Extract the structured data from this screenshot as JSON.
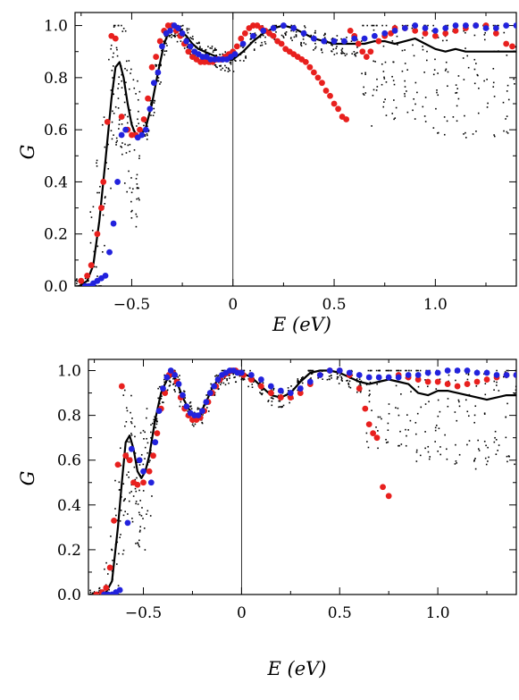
{
  "chart_data": [
    {
      "type": "scatter",
      "title": "",
      "xlabel": "E (eV)",
      "ylabel": "G",
      "xlim": [
        -0.78,
        1.4
      ],
      "ylim": [
        0.0,
        1.05
      ],
      "x_ticks": [
        "−0.5",
        "0",
        "0.5",
        "1.0"
      ],
      "x_tick_values": [
        -0.5,
        0,
        0.5,
        1.0
      ],
      "y_ticks": [
        "0.0",
        "0.2",
        "0.4",
        "0.6",
        "0.8",
        "1.0"
      ],
      "y_tick_values": [
        0.0,
        0.2,
        0.4,
        0.6,
        0.8,
        1.0
      ],
      "grid": false,
      "legend": "none",
      "vertical_reference_line_x": 0,
      "series": [
        {
          "color": "#000000",
          "style": "line",
          "x": [
            -0.76,
            -0.72,
            -0.69,
            -0.66,
            -0.63,
            -0.6,
            -0.58,
            -0.56,
            -0.54,
            -0.52,
            -0.5,
            -0.48,
            -0.46,
            -0.43,
            -0.4,
            -0.37,
            -0.34,
            -0.31,
            -0.28,
            -0.26,
            -0.23,
            -0.2,
            -0.17,
            -0.14,
            -0.11,
            -0.08,
            -0.05,
            -0.02,
            0.0,
            0.05,
            0.1,
            0.15,
            0.2,
            0.25,
            0.3,
            0.35,
            0.4,
            0.45,
            0.5,
            0.55,
            0.6,
            0.65,
            0.7,
            0.75,
            0.8,
            0.85,
            0.9,
            0.95,
            1.0,
            1.05,
            1.1,
            1.15,
            1.2,
            1.25,
            1.3,
            1.35,
            1.4
          ],
          "y": [
            0.0,
            0.02,
            0.08,
            0.25,
            0.48,
            0.72,
            0.84,
            0.86,
            0.8,
            0.7,
            0.62,
            0.58,
            0.57,
            0.61,
            0.7,
            0.82,
            0.93,
            0.99,
            1.0,
            0.98,
            0.96,
            0.93,
            0.91,
            0.9,
            0.89,
            0.88,
            0.87,
            0.87,
            0.87,
            0.9,
            0.94,
            0.97,
            0.99,
            1.0,
            0.99,
            0.97,
            0.95,
            0.94,
            0.93,
            0.93,
            0.93,
            0.93,
            0.94,
            0.94,
            0.93,
            0.94,
            0.95,
            0.93,
            0.91,
            0.9,
            0.91,
            0.9,
            0.9,
            0.9,
            0.9,
            0.9,
            0.9
          ]
        },
        {
          "color": "#e8201e",
          "style": "points",
          "x": [
            -0.75,
            -0.72,
            -0.7,
            -0.67,
            -0.65,
            -0.64,
            -0.62,
            -0.6,
            -0.58,
            -0.55,
            -0.52,
            -0.5,
            -0.48,
            -0.46,
            -0.44,
            -0.42,
            -0.4,
            -0.38,
            -0.36,
            -0.34,
            -0.32,
            -0.3,
            -0.28,
            -0.26,
            -0.24,
            -0.22,
            -0.2,
            -0.18,
            -0.16,
            -0.14,
            -0.12,
            -0.1,
            -0.08,
            -0.06,
            -0.04,
            -0.02,
            0.0,
            0.02,
            0.04,
            0.06,
            0.08,
            0.1,
            0.12,
            0.14,
            0.16,
            0.18,
            0.2,
            0.22,
            0.24,
            0.26,
            0.28,
            0.3,
            0.32,
            0.34,
            0.36,
            0.38,
            0.4,
            0.42,
            0.44,
            0.46,
            0.48,
            0.5,
            0.52,
            0.54,
            0.56,
            0.58,
            0.6,
            0.62,
            0.64,
            0.66,
            0.68,
            0.72,
            0.75,
            0.78,
            0.8,
            0.85,
            0.9,
            0.95,
            1.0,
            1.05,
            1.1,
            1.15,
            1.2,
            1.25,
            1.3,
            1.35,
            1.38
          ],
          "y": [
            0.02,
            0.04,
            0.08,
            0.2,
            0.3,
            0.4,
            0.63,
            0.96,
            0.95,
            0.65,
            0.6,
            0.58,
            0.58,
            0.6,
            0.64,
            0.72,
            0.84,
            0.88,
            0.94,
            0.98,
            1.0,
            1.0,
            0.98,
            0.96,
            0.93,
            0.9,
            0.88,
            0.87,
            0.86,
            0.86,
            0.86,
            0.86,
            0.87,
            0.87,
            0.88,
            0.89,
            0.9,
            0.92,
            0.95,
            0.97,
            0.99,
            1.0,
            1.0,
            0.99,
            0.98,
            0.97,
            0.96,
            0.94,
            0.93,
            0.91,
            0.9,
            0.89,
            0.88,
            0.87,
            0.86,
            0.84,
            0.82,
            0.8,
            0.78,
            0.75,
            0.73,
            0.7,
            0.68,
            0.65,
            0.64,
            0.98,
            0.96,
            0.93,
            0.9,
            0.88,
            0.9,
            0.94,
            0.96,
            0.97,
            0.99,
            0.99,
            0.98,
            0.97,
            0.96,
            0.97,
            0.98,
            0.99,
            1.0,
            1.0,
            0.97,
            0.93,
            0.92
          ]
        },
        {
          "color": "#2222dd",
          "style": "points",
          "x": [
            -0.73,
            -0.71,
            -0.69,
            -0.67,
            -0.65,
            -0.63,
            -0.61,
            -0.59,
            -0.57,
            -0.55,
            -0.53,
            -0.47,
            -0.45,
            -0.43,
            -0.41,
            -0.39,
            -0.37,
            -0.35,
            -0.33,
            -0.31,
            -0.29,
            -0.27,
            -0.25,
            -0.23,
            -0.21,
            -0.19,
            -0.17,
            -0.15,
            -0.13,
            -0.11,
            -0.09,
            -0.07,
            -0.05,
            -0.03,
            -0.01,
            0.01,
            0.05,
            0.1,
            0.15,
            0.2,
            0.25,
            0.3,
            0.35,
            0.4,
            0.45,
            0.5,
            0.55,
            0.6,
            0.65,
            0.7,
            0.75,
            0.8,
            0.85,
            0.9,
            0.95,
            1.0,
            1.05,
            1.1,
            1.15,
            1.2,
            1.25,
            1.3,
            1.35,
            1.4
          ],
          "y": [
            0.0,
            0.0,
            0.01,
            0.02,
            0.03,
            0.04,
            0.13,
            0.24,
            0.4,
            0.58,
            0.6,
            0.57,
            0.58,
            0.6,
            0.68,
            0.78,
            0.82,
            0.92,
            0.97,
            0.98,
            1.0,
            0.99,
            0.97,
            0.94,
            0.92,
            0.9,
            0.89,
            0.88,
            0.88,
            0.87,
            0.87,
            0.87,
            0.87,
            0.87,
            0.88,
            0.89,
            0.93,
            0.96,
            0.98,
            0.99,
            1.0,
            0.99,
            0.97,
            0.95,
            0.94,
            0.94,
            0.94,
            0.95,
            0.95,
            0.96,
            0.97,
            0.98,
            0.99,
            1.0,
            0.99,
            0.98,
            0.99,
            1.0,
            1.0,
            1.0,
            0.99,
            0.99,
            1.0,
            1.0
          ]
        }
      ]
    },
    {
      "type": "scatter",
      "title": "",
      "xlabel": "E (eV)",
      "ylabel": "G",
      "xlim": [
        -0.78,
        1.4
      ],
      "ylim": [
        0.0,
        1.05
      ],
      "x_ticks": [
        "−0.5",
        "0",
        "0.5",
        "1.0"
      ],
      "x_tick_values": [
        -0.5,
        0,
        0.5,
        1.0
      ],
      "y_ticks": [
        "0.0",
        "0.2",
        "0.4",
        "0.6",
        "0.8",
        "1.0"
      ],
      "y_tick_values": [
        0.0,
        0.2,
        0.4,
        0.6,
        0.8,
        1.0
      ],
      "grid": false,
      "legend": "none",
      "vertical_reference_line_x": 0,
      "series": [
        {
          "color": "#000000",
          "style": "line",
          "x": [
            -0.76,
            -0.72,
            -0.69,
            -0.66,
            -0.63,
            -0.61,
            -0.59,
            -0.57,
            -0.55,
            -0.53,
            -0.51,
            -0.49,
            -0.47,
            -0.44,
            -0.41,
            -0.38,
            -0.35,
            -0.33,
            -0.3,
            -0.27,
            -0.24,
            -0.21,
            -0.18,
            -0.15,
            -0.12,
            -0.09,
            -0.06,
            -0.03,
            0.0,
            0.05,
            0.1,
            0.15,
            0.2,
            0.25,
            0.3,
            0.35,
            0.4,
            0.45,
            0.5,
            0.55,
            0.6,
            0.65,
            0.7,
            0.75,
            0.8,
            0.85,
            0.9,
            0.95,
            1.0,
            1.05,
            1.1,
            1.15,
            1.2,
            1.25,
            1.3,
            1.35,
            1.4
          ],
          "y": [
            0.0,
            0.0,
            0.01,
            0.06,
            0.3,
            0.5,
            0.68,
            0.71,
            0.65,
            0.55,
            0.52,
            0.55,
            0.62,
            0.78,
            0.9,
            0.96,
            0.98,
            0.95,
            0.88,
            0.83,
            0.8,
            0.81,
            0.86,
            0.92,
            0.96,
            0.98,
            0.99,
            0.99,
            0.99,
            0.97,
            0.93,
            0.89,
            0.88,
            0.9,
            0.95,
            0.99,
            1.0,
            1.0,
            0.99,
            0.97,
            0.95,
            0.94,
            0.95,
            0.96,
            0.95,
            0.94,
            0.9,
            0.89,
            0.91,
            0.91,
            0.9,
            0.89,
            0.88,
            0.87,
            0.88,
            0.89,
            0.89
          ]
        },
        {
          "color": "#e8201e",
          "style": "points",
          "x": [
            -0.74,
            -0.71,
            -0.69,
            -0.67,
            -0.65,
            -0.63,
            -0.61,
            -0.59,
            -0.57,
            -0.55,
            -0.53,
            -0.5,
            -0.47,
            -0.45,
            -0.43,
            -0.41,
            -0.39,
            -0.37,
            -0.35,
            -0.33,
            -0.31,
            -0.29,
            -0.27,
            -0.25,
            -0.23,
            -0.21,
            -0.19,
            -0.17,
            -0.15,
            -0.13,
            -0.11,
            -0.09,
            -0.07,
            -0.05,
            -0.03,
            -0.01,
            0.01,
            0.05,
            0.1,
            0.15,
            0.2,
            0.25,
            0.3,
            0.35,
            0.4,
            0.45,
            0.5,
            0.55,
            0.6,
            0.63,
            0.65,
            0.67,
            0.69,
            0.72,
            0.75,
            0.8,
            0.85,
            0.9,
            0.95,
            1.0,
            1.05,
            1.1,
            1.15,
            1.2,
            1.25,
            1.3,
            1.35,
            1.4
          ],
          "y": [
            0.0,
            0.01,
            0.03,
            0.12,
            0.33,
            0.58,
            0.93,
            0.62,
            0.6,
            0.5,
            0.49,
            0.5,
            0.55,
            0.62,
            0.72,
            0.83,
            0.9,
            0.98,
            0.99,
            0.95,
            0.88,
            0.83,
            0.8,
            0.78,
            0.78,
            0.79,
            0.82,
            0.86,
            0.9,
            0.93,
            0.96,
            0.98,
            0.99,
            1.0,
            1.0,
            0.99,
            0.98,
            0.96,
            0.93,
            0.9,
            0.88,
            0.88,
            0.9,
            0.94,
            0.98,
            1.0,
            1.0,
            0.98,
            0.92,
            0.83,
            0.76,
            0.72,
            0.7,
            0.48,
            0.44,
            0.98,
            0.97,
            0.96,
            0.95,
            0.95,
            0.94,
            0.93,
            0.94,
            0.95,
            0.96,
            0.97,
            0.98,
            0.98
          ]
        },
        {
          "color": "#2222dd",
          "style": "points",
          "x": [
            -0.7,
            -0.68,
            -0.66,
            -0.64,
            -0.62,
            -0.58,
            -0.56,
            -0.52,
            -0.5,
            -0.46,
            -0.44,
            -0.42,
            -0.4,
            -0.38,
            -0.36,
            -0.34,
            -0.32,
            -0.3,
            -0.28,
            -0.26,
            -0.24,
            -0.22,
            -0.2,
            -0.18,
            -0.16,
            -0.14,
            -0.12,
            -0.1,
            -0.08,
            -0.06,
            -0.04,
            -0.02,
            0.0,
            0.05,
            0.1,
            0.15,
            0.2,
            0.25,
            0.3,
            0.35,
            0.4,
            0.45,
            0.5,
            0.55,
            0.6,
            0.65,
            0.7,
            0.75,
            0.8,
            0.85,
            0.9,
            0.95,
            1.0,
            1.05,
            1.1,
            1.15,
            1.2,
            1.25,
            1.3,
            1.35,
            1.4
          ],
          "y": [
            0.0,
            0.0,
            0.0,
            0.01,
            0.02,
            0.32,
            0.65,
            0.6,
            0.55,
            0.5,
            0.68,
            0.82,
            0.92,
            0.97,
            1.0,
            0.98,
            0.94,
            0.89,
            0.84,
            0.81,
            0.8,
            0.8,
            0.82,
            0.86,
            0.9,
            0.93,
            0.96,
            0.98,
            0.99,
            1.0,
            1.0,
            0.99,
            0.99,
            0.98,
            0.96,
            0.93,
            0.91,
            0.9,
            0.92,
            0.95,
            0.98,
            1.0,
            1.0,
            0.99,
            0.98,
            0.97,
            0.97,
            0.97,
            0.97,
            0.98,
            0.98,
            0.99,
            0.99,
            1.0,
            1.0,
            1.0,
            0.99,
            0.99,
            0.98,
            0.98,
            0.98
          ]
        }
      ]
    }
  ]
}
